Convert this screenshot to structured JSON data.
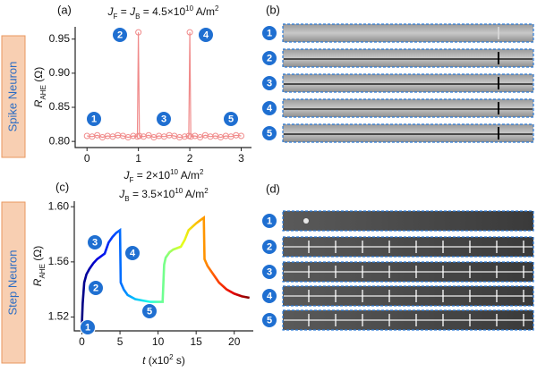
{
  "chart_data": [
    {
      "type": "line",
      "panel": "(a)",
      "title": [
        [
          "J",
          "i"
        ],
        [
          "F",
          "sub"
        ],
        [
          " = ",
          ""
        ],
        [
          "J",
          "i"
        ],
        [
          "B",
          "sub"
        ],
        [
          " = 4.5×10",
          ""
        ],
        [
          "10",
          "sup"
        ],
        [
          " A/m",
          ""
        ],
        [
          "2",
          "sup"
        ]
      ],
      "ylabel": [
        [
          "R",
          "i"
        ],
        [
          "AHE",
          "sub"
        ],
        [
          " (Ω)",
          ""
        ]
      ],
      "x": [
        0,
        0.1,
        0.2,
        0.3,
        0.4,
        0.5,
        0.6,
        0.7,
        0.8,
        0.9,
        0.98,
        1,
        1.02,
        1.1,
        1.2,
        1.3,
        1.4,
        1.5,
        1.6,
        1.7,
        1.8,
        1.9,
        1.98,
        2,
        2.02,
        2.1,
        2.2,
        2.3,
        2.4,
        2.5,
        2.6,
        2.7,
        2.8,
        2.9,
        3
      ],
      "values": [
        0.808,
        0.807,
        0.809,
        0.806,
        0.808,
        0.807,
        0.809,
        0.808,
        0.806,
        0.808,
        0.807,
        0.96,
        0.808,
        0.807,
        0.809,
        0.806,
        0.808,
        0.807,
        0.809,
        0.808,
        0.806,
        0.807,
        0.808,
        0.96,
        0.807,
        0.808,
        0.806,
        0.809,
        0.807,
        0.808,
        0.806,
        0.808,
        0.807,
        0.809,
        0.808
      ],
      "color": "#f08a8a",
      "markers": true,
      "xlim": [
        -0.23,
        3.2
      ],
      "xticks": [
        0,
        1,
        2,
        3
      ],
      "ylim": [
        0.791,
        0.968
      ],
      "yticks": [
        {
          "value": 0.8,
          "label": "0.80"
        },
        {
          "value": 0.85,
          "label": "0.85"
        },
        {
          "value": 0.9,
          "label": "0.90"
        },
        {
          "value": 0.95,
          "label": "0.95"
        }
      ],
      "annotations": [
        "1",
        "2",
        "3",
        "4",
        "5"
      ]
    },
    {
      "type": "line",
      "panel": "(c)",
      "title": [
        [
          "J",
          "i"
        ],
        [
          "F",
          "sub"
        ],
        [
          " = 2×10",
          ""
        ],
        [
          "10",
          "sup"
        ],
        [
          " A/m",
          ""
        ],
        [
          "2",
          "sup"
        ]
      ],
      "subtitle": [
        [
          "J",
          "i"
        ],
        [
          "B",
          "sub"
        ],
        [
          " = 3.5×10",
          ""
        ],
        [
          "10",
          "sup"
        ],
        [
          " A/m",
          ""
        ],
        [
          "2",
          "sup"
        ]
      ],
      "ylabel": [
        [
          "R",
          "i"
        ],
        [
          "AHE",
          "sub"
        ],
        [
          " (Ω)",
          ""
        ]
      ],
      "xlabel": [
        [
          "t",
          "i"
        ],
        [
          " (x10",
          ""
        ],
        [
          "2",
          "sup"
        ],
        [
          " s)",
          ""
        ]
      ],
      "x": [
        0,
        0.1,
        0.3,
        0.6,
        1,
        1.5,
        2,
        2.5,
        3,
        3.5,
        4,
        4.5,
        5,
        5.1,
        5.5,
        6,
        7,
        8,
        9,
        10,
        10.6,
        10.8,
        11,
        11.5,
        12,
        13,
        13.5,
        14,
        15,
        15.5,
        16,
        16.1,
        16.5,
        17,
        18,
        19,
        20,
        21,
        22
      ],
      "values": [
        1.515,
        1.53,
        1.545,
        1.551,
        1.555,
        1.559,
        1.562,
        1.564,
        1.566,
        1.574,
        1.578,
        1.581,
        1.583,
        1.545,
        1.54,
        1.536,
        1.533,
        1.532,
        1.531,
        1.531,
        1.531,
        1.558,
        1.563,
        1.567,
        1.569,
        1.571,
        1.576,
        1.583,
        1.588,
        1.59,
        1.592,
        1.562,
        1.557,
        1.553,
        1.545,
        1.54,
        1.537,
        1.535,
        1.534
      ],
      "colormap": "jet",
      "xlim": [
        -1,
        22.5
      ],
      "xticks": [
        0,
        5,
        10,
        15,
        20
      ],
      "ylim": [
        1.51,
        1.604
      ],
      "yticks": [
        {
          "value": 1.52,
          "label": "1.52"
        },
        {
          "value": 1.56,
          "label": "1.56"
        },
        {
          "value": 1.6,
          "label": "1.60"
        }
      ],
      "annotations": [
        "1",
        "2",
        "3",
        "4",
        "5"
      ]
    }
  ],
  "side_labels": [
    "Spike Neuron",
    "Step Neuron"
  ],
  "images": [
    {
      "panel": "(b)",
      "labels": [
        "1",
        "2",
        "3",
        "4",
        "5"
      ]
    },
    {
      "panel": "(d)",
      "labels": [
        "1",
        "2",
        "3",
        "4",
        "5"
      ]
    }
  ]
}
